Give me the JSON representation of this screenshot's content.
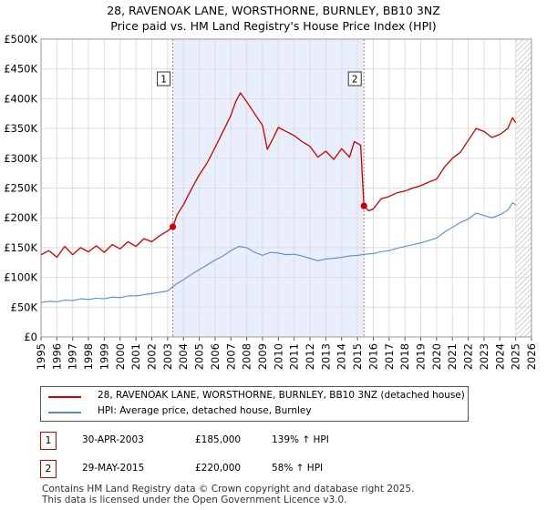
{
  "title_line1": "28, RAVENOAK LANE, WORSTHORNE, BURNLEY, BB10 3NZ",
  "title_line2": "Price paid vs. HM Land Registry's House Price Index (HPI)",
  "colors": {
    "property": "#cc0000",
    "hpi": "#5b8cc8",
    "shade": "#e8eefb",
    "grid": "#dddddd",
    "vline": "#e07070"
  },
  "chart_data": {
    "type": "line",
    "x_range": [
      1995,
      2026
    ],
    "ylim": [
      0,
      500000
    ],
    "y_ticks": [
      {
        "value": 0,
        "label": "£0"
      },
      {
        "value": 50000,
        "label": "£50K"
      },
      {
        "value": 100000,
        "label": "£100K"
      },
      {
        "value": 150000,
        "label": "£150K"
      },
      {
        "value": 200000,
        "label": "£200K"
      },
      {
        "value": 250000,
        "label": "£250K"
      },
      {
        "value": 300000,
        "label": "£300K"
      },
      {
        "value": 350000,
        "label": "£350K"
      },
      {
        "value": 400000,
        "label": "£400K"
      },
      {
        "value": 450000,
        "label": "£450K"
      },
      {
        "value": 500000,
        "label": "£500K"
      }
    ],
    "x_ticks": [
      "1995",
      "1996",
      "1997",
      "1998",
      "1999",
      "2000",
      "2001",
      "2002",
      "2003",
      "2004",
      "2005",
      "2006",
      "2007",
      "2008",
      "2009",
      "2010",
      "2011",
      "2012",
      "2013",
      "2014",
      "2015",
      "2016",
      "2017",
      "2018",
      "2019",
      "2020",
      "2021",
      "2022",
      "2023",
      "2024",
      "2025",
      "2026"
    ],
    "shaded_period": [
      2003.33,
      2015.41
    ],
    "hatched_from": 2025.0,
    "series": [
      {
        "name": "28, RAVENOAK LANE, WORSTHORNE, BURNLEY, BB10 3NZ (detached house)",
        "points": [
          [
            1995.0,
            138000
          ],
          [
            1995.5,
            145000
          ],
          [
            1996.0,
            134000
          ],
          [
            1996.5,
            152000
          ],
          [
            1997.0,
            138000
          ],
          [
            1997.5,
            150000
          ],
          [
            1998.0,
            143000
          ],
          [
            1998.5,
            153000
          ],
          [
            1999.0,
            142000
          ],
          [
            1999.5,
            155000
          ],
          [
            2000.0,
            148000
          ],
          [
            2000.5,
            160000
          ],
          [
            2001.0,
            152000
          ],
          [
            2001.5,
            165000
          ],
          [
            2002.0,
            160000
          ],
          [
            2002.5,
            170000
          ],
          [
            2003.0,
            178000
          ],
          [
            2003.33,
            185000
          ],
          [
            2003.6,
            205000
          ],
          [
            2004.0,
            222000
          ],
          [
            2004.5,
            248000
          ],
          [
            2005.0,
            272000
          ],
          [
            2005.5,
            292000
          ],
          [
            2006.0,
            318000
          ],
          [
            2006.5,
            345000
          ],
          [
            2007.0,
            372000
          ],
          [
            2007.3,
            395000
          ],
          [
            2007.6,
            410000
          ],
          [
            2008.0,
            395000
          ],
          [
            2008.5,
            375000
          ],
          [
            2009.0,
            355000
          ],
          [
            2009.3,
            315000
          ],
          [
            2009.7,
            335000
          ],
          [
            2010.0,
            352000
          ],
          [
            2010.5,
            345000
          ],
          [
            2011.0,
            338000
          ],
          [
            2011.5,
            328000
          ],
          [
            2012.0,
            320000
          ],
          [
            2012.5,
            302000
          ],
          [
            2013.0,
            312000
          ],
          [
            2013.5,
            298000
          ],
          [
            2014.0,
            316000
          ],
          [
            2014.5,
            302000
          ],
          [
            2014.8,
            328000
          ],
          [
            2015.2,
            322000
          ],
          [
            2015.41,
            220000
          ],
          [
            2015.7,
            212000
          ],
          [
            2016.0,
            215000
          ],
          [
            2016.5,
            232000
          ],
          [
            2017.0,
            236000
          ],
          [
            2017.5,
            242000
          ],
          [
            2018.0,
            245000
          ],
          [
            2018.5,
            250000
          ],
          [
            2019.0,
            254000
          ],
          [
            2019.5,
            260000
          ],
          [
            2020.0,
            265000
          ],
          [
            2020.5,
            285000
          ],
          [
            2021.0,
            300000
          ],
          [
            2021.5,
            310000
          ],
          [
            2022.0,
            330000
          ],
          [
            2022.5,
            350000
          ],
          [
            2023.0,
            345000
          ],
          [
            2023.5,
            335000
          ],
          [
            2024.0,
            340000
          ],
          [
            2024.5,
            350000
          ],
          [
            2024.8,
            368000
          ],
          [
            2025.0,
            360000
          ]
        ]
      },
      {
        "name": "HPI: Average price, detached house, Burnley",
        "points": [
          [
            1995.0,
            58000
          ],
          [
            1995.5,
            60000
          ],
          [
            1996.0,
            59000
          ],
          [
            1996.5,
            62000
          ],
          [
            1997.0,
            61000
          ],
          [
            1997.5,
            64000
          ],
          [
            1998.0,
            63000
          ],
          [
            1998.5,
            65000
          ],
          [
            1999.0,
            64000
          ],
          [
            1999.5,
            67000
          ],
          [
            2000.0,
            66000
          ],
          [
            2000.5,
            69000
          ],
          [
            2001.0,
            69000
          ],
          [
            2001.5,
            71000
          ],
          [
            2002.0,
            73000
          ],
          [
            2002.5,
            75000
          ],
          [
            2003.0,
            77000
          ],
          [
            2003.5,
            88000
          ],
          [
            2004.0,
            96000
          ],
          [
            2004.5,
            105000
          ],
          [
            2005.0,
            113000
          ],
          [
            2005.5,
            121000
          ],
          [
            2006.0,
            129000
          ],
          [
            2006.5,
            136000
          ],
          [
            2007.0,
            145000
          ],
          [
            2007.5,
            152000
          ],
          [
            2008.0,
            150000
          ],
          [
            2008.5,
            142000
          ],
          [
            2009.0,
            137000
          ],
          [
            2009.5,
            142000
          ],
          [
            2010.0,
            141000
          ],
          [
            2010.5,
            138000
          ],
          [
            2011.0,
            139000
          ],
          [
            2011.5,
            136000
          ],
          [
            2012.0,
            132000
          ],
          [
            2012.5,
            128000
          ],
          [
            2013.0,
            131000
          ],
          [
            2013.5,
            132000
          ],
          [
            2014.0,
            134000
          ],
          [
            2014.5,
            136000
          ],
          [
            2015.0,
            137000
          ],
          [
            2015.5,
            139000
          ],
          [
            2016.0,
            140000
          ],
          [
            2016.5,
            143000
          ],
          [
            2017.0,
            145000
          ],
          [
            2017.5,
            149000
          ],
          [
            2018.0,
            152000
          ],
          [
            2018.5,
            155000
          ],
          [
            2019.0,
            158000
          ],
          [
            2019.5,
            162000
          ],
          [
            2020.0,
            166000
          ],
          [
            2020.5,
            176000
          ],
          [
            2021.0,
            184000
          ],
          [
            2021.5,
            192000
          ],
          [
            2022.0,
            198000
          ],
          [
            2022.5,
            208000
          ],
          [
            2023.0,
            204000
          ],
          [
            2023.5,
            200000
          ],
          [
            2024.0,
            205000
          ],
          [
            2024.5,
            213000
          ],
          [
            2024.8,
            225000
          ],
          [
            2025.0,
            222000
          ]
        ]
      }
    ],
    "markers": [
      {
        "label": "1",
        "x": 2003.33,
        "y": 185000
      },
      {
        "label": "2",
        "x": 2015.41,
        "y": 220000
      }
    ]
  },
  "legend": {
    "property": "28, RAVENOAK LANE, WORSTHORNE, BURNLEY, BB10 3NZ (detached house)",
    "hpi": "HPI: Average price, detached house, Burnley"
  },
  "annotations": [
    {
      "num": "1",
      "date": "30-APR-2003",
      "price": "£185,000",
      "hpi": "139% ↑ HPI"
    },
    {
      "num": "2",
      "date": "29-MAY-2015",
      "price": "£220,000",
      "hpi": "58% ↑ HPI"
    }
  ],
  "footer_line1": "Contains HM Land Registry data © Crown copyright and database right 2025.",
  "footer_line2": "This data is licensed under the Open Government Licence v3.0."
}
